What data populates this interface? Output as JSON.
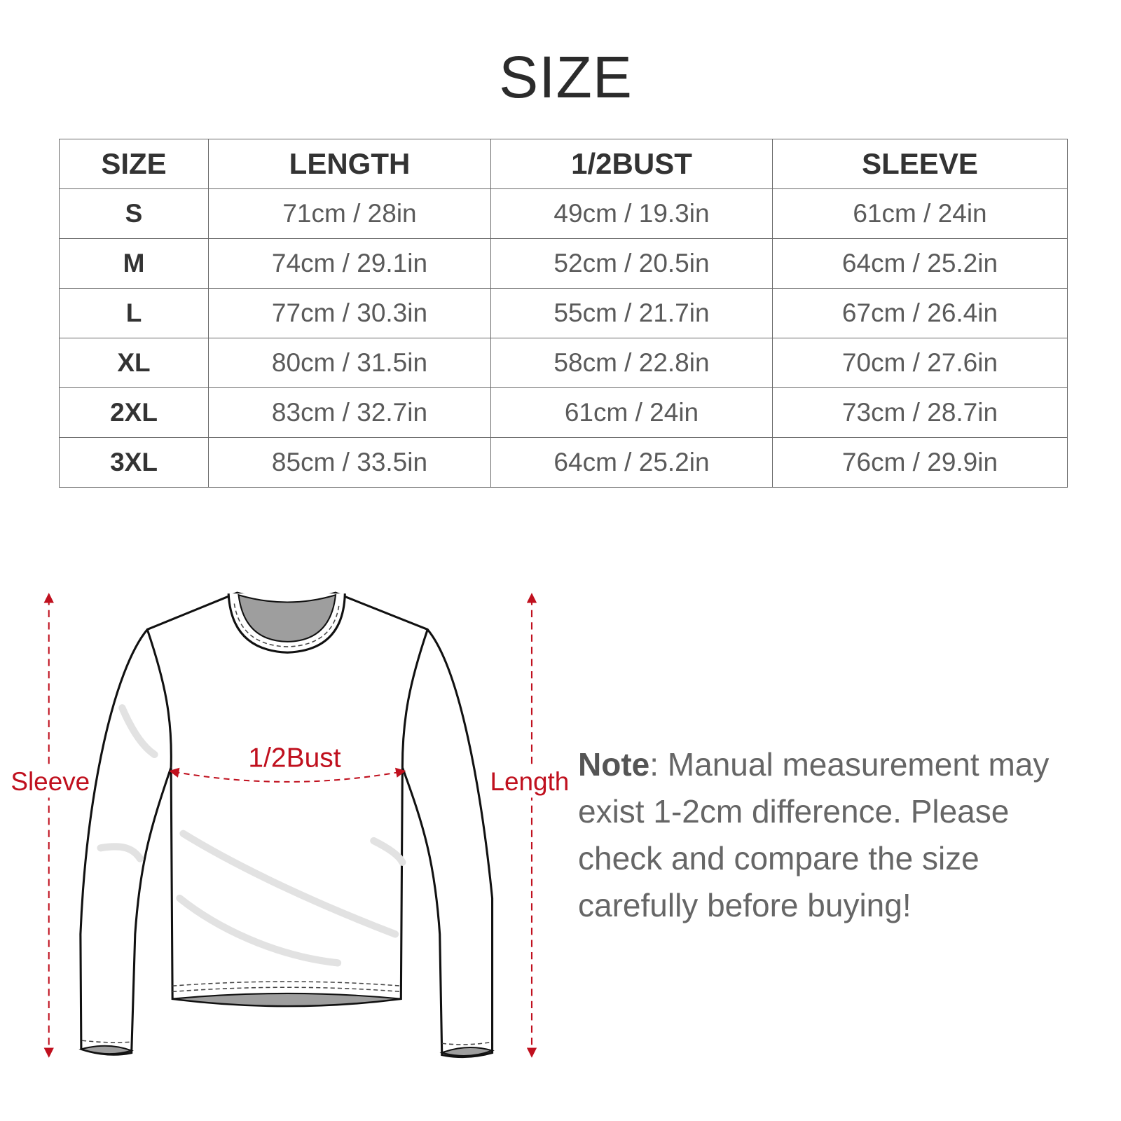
{
  "title": "SIZE",
  "table": {
    "headers": [
      "SIZE",
      "LENGTH",
      "1/2BUST",
      "SLEEVE"
    ],
    "rows": [
      [
        "S",
        "71cm / 28in",
        "49cm / 19.3in",
        "61cm / 24in"
      ],
      [
        "M",
        "74cm / 29.1in",
        "52cm / 20.5in",
        "64cm / 25.2in"
      ],
      [
        "L",
        "77cm / 30.3in",
        "55cm / 21.7in",
        "67cm / 26.4in"
      ],
      [
        "XL",
        "80cm / 31.5in",
        "58cm / 22.8in",
        "70cm / 27.6in"
      ],
      [
        "2XL",
        "83cm / 32.7in",
        "61cm / 24in",
        "73cm / 28.7in"
      ],
      [
        "3XL",
        "85cm / 33.5in",
        "64cm / 25.2in",
        "76cm / 29.9in"
      ]
    ]
  },
  "diagram": {
    "sleeve_label": "Sleeve",
    "length_label": "Length",
    "bust_label": "1/2Bust",
    "accent_color": "#c0101e"
  },
  "note": {
    "label": "Note",
    "text": ": Manual measurement may exist 1-2cm difference. Please check and compare the size carefully before buying!"
  }
}
